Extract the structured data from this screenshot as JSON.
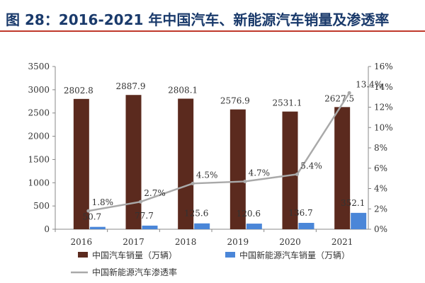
{
  "header": {
    "title": "图 28：2016-2021 年中国汽车、新能源汽车销量及渗透率"
  },
  "colors": {
    "title": "#1a3a6b",
    "rule": "#c0392b",
    "total_bar": "#5b2a1e",
    "nev_bar": "#4a86d8",
    "rate_line": "#a9a9a9"
  },
  "chart_data": {
    "type": "bar",
    "categories": [
      "2016",
      "2017",
      "2018",
      "2019",
      "2020",
      "2021"
    ],
    "series": [
      {
        "name": "中国汽车销量（万辆）",
        "type": "bar",
        "axis": "left",
        "values": [
          2802.8,
          2887.9,
          2808.1,
          2576.9,
          2531.1,
          2627.5
        ],
        "labels": [
          "2802.8",
          "2887.9",
          "2808.1",
          "2576.9",
          "2531.1",
          "2627.5"
        ]
      },
      {
        "name": "中国新能源汽车销量（万辆）",
        "type": "bar",
        "axis": "left",
        "values": [
          50.7,
          77.7,
          125.6,
          120.6,
          136.7,
          352.1
        ],
        "labels": [
          "50.7",
          "77.7",
          "125.6",
          "120.6",
          "136.7",
          "352.1"
        ]
      },
      {
        "name": "中国新能源汽车渗透率",
        "type": "line",
        "axis": "right",
        "values": [
          1.8,
          2.7,
          4.5,
          4.7,
          5.4,
          13.4
        ],
        "labels": [
          "1.8%",
          "2.7%",
          "4.5%",
          "4.7%",
          "5.4%",
          "13.4%"
        ]
      }
    ],
    "y_left": {
      "min": 0,
      "max": 3500,
      "ticks": [
        "0",
        "500",
        "1000",
        "1500",
        "2000",
        "2500",
        "3000",
        "3500"
      ]
    },
    "y_right": {
      "min": 0,
      "max": 16,
      "ticks": [
        "0%",
        "2%",
        "4%",
        "6%",
        "8%",
        "10%",
        "12%",
        "14%",
        "16%"
      ]
    },
    "grid": false,
    "legend_position": "bottom"
  }
}
